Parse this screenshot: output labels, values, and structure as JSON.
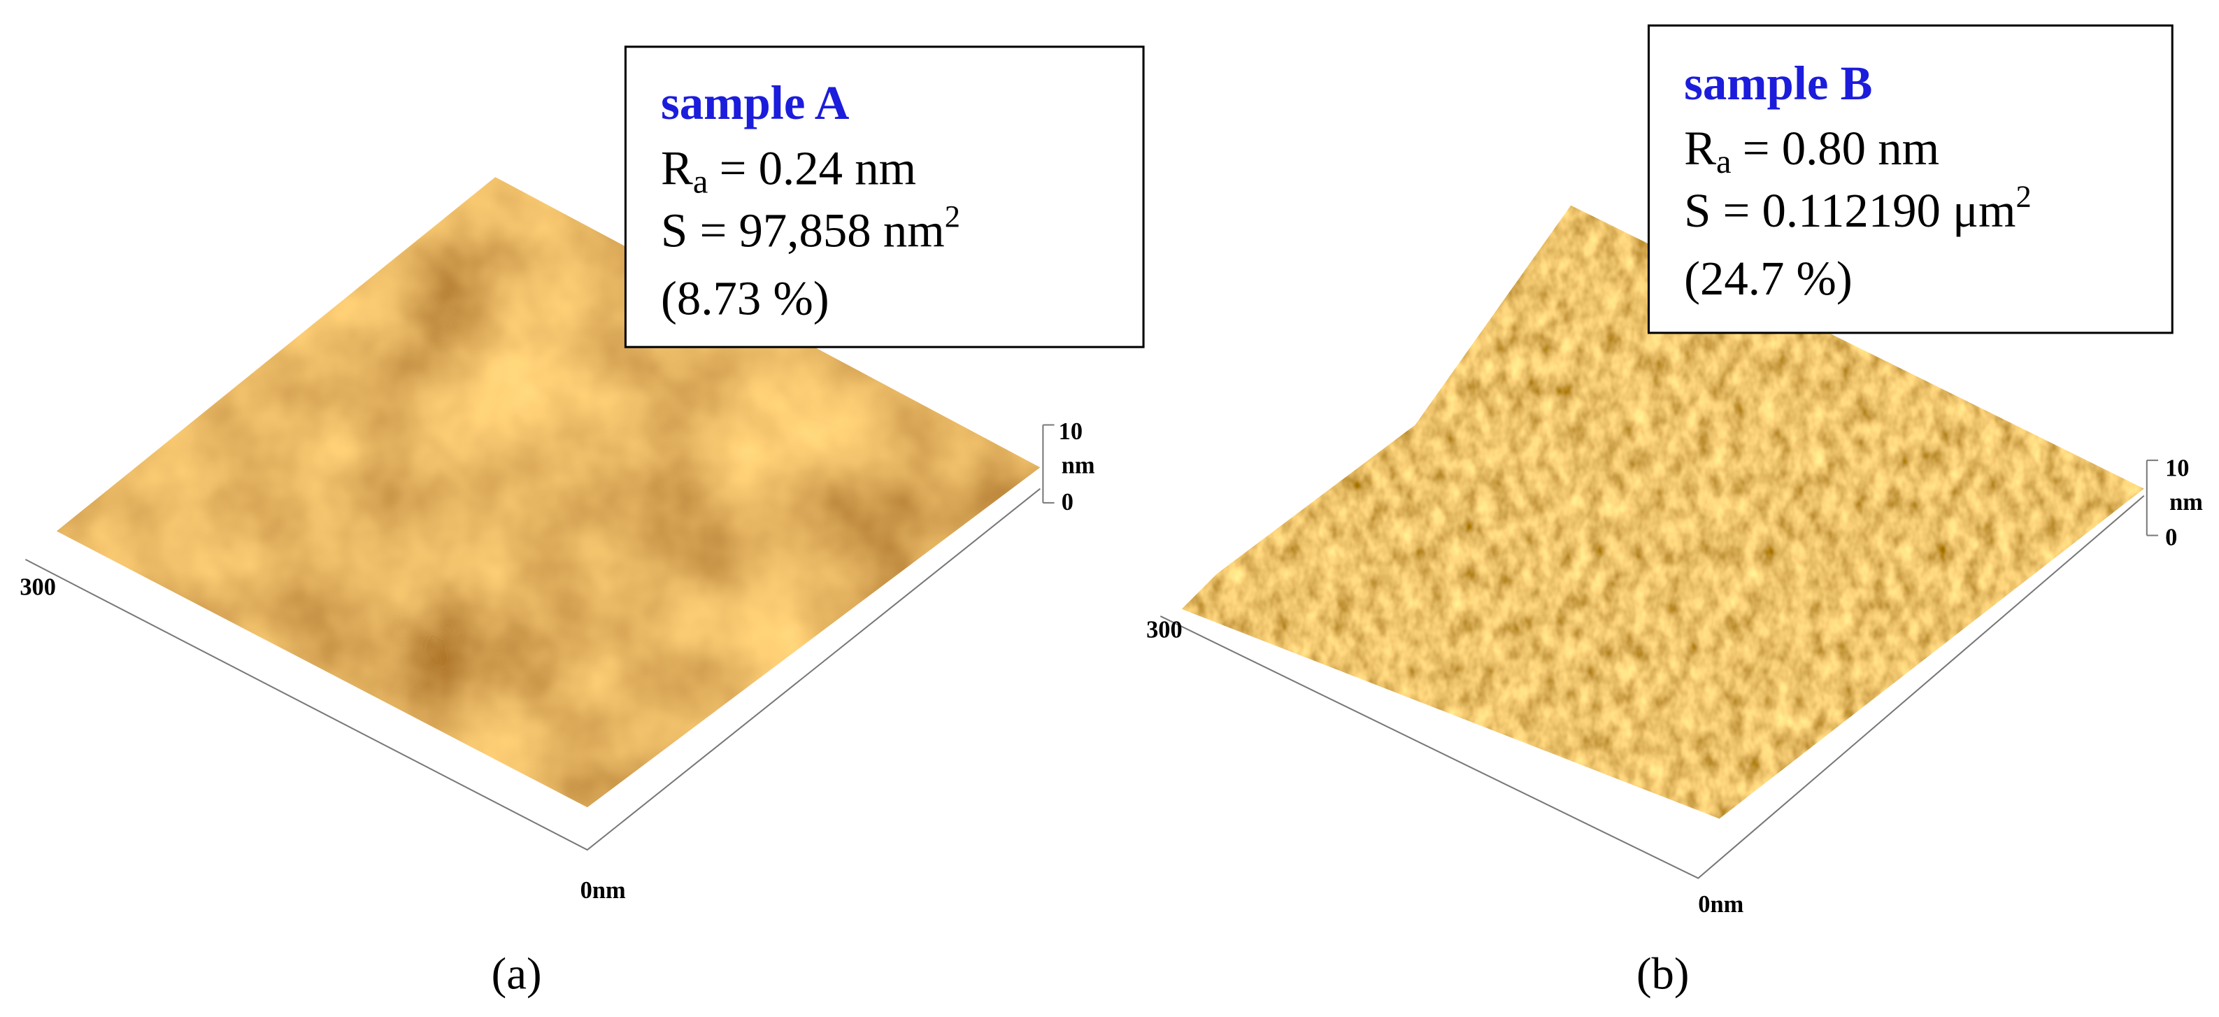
{
  "panels": [
    {
      "caption": "(a)",
      "sample": "sample A",
      "roughness": {
        "symbol": "R",
        "subscript": "a",
        "text": "= 0.24 nm"
      },
      "area": {
        "text": "S = 97,858 nm",
        "superscript": "2"
      },
      "increase": "(8.73 %)",
      "axis": {
        "xy_max": "300",
        "origin": "0nm",
        "z_max": "10",
        "z_unit": "nm",
        "z_min": "0"
      }
    },
    {
      "caption": "(b)",
      "sample": "sample B",
      "roughness": {
        "symbol": "R",
        "subscript": "a",
        "text": "= 0.80 nm"
      },
      "area": {
        "text": "S = 0.112190 μm",
        "superscript": "2"
      },
      "increase": "(24.7 %)",
      "axis": {
        "xy_max": "300",
        "origin": "0nm",
        "z_max": "10",
        "z_unit": "nm",
        "z_min": "0"
      }
    }
  ]
}
